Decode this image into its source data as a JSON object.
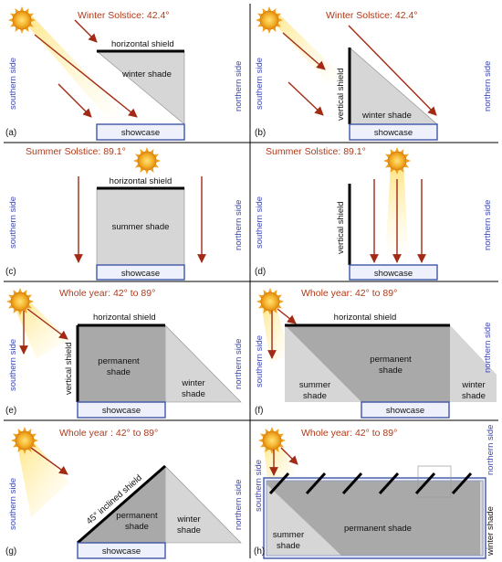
{
  "colors": {
    "ray": "#a32a14",
    "shield": "#000000",
    "shade_light": "#d6d6d6",
    "shade_dark": "#a9a9a9",
    "showcase_border": "#3f56a8",
    "showcase_fill": "#eef1fb",
    "side_text": "#3b46b0",
    "title_text": "#b03a1a",
    "sun": "#f0a21e",
    "grid": "#000000"
  },
  "icons": {
    "sun": "sun-icon"
  },
  "panels": {
    "a": {
      "label": "(a)",
      "title": "Winter Solstice: 42.4°",
      "southern": "southern side",
      "northern": "northern side",
      "shield": "horizontal shield",
      "shade": "winter shade",
      "showcase": "showcase"
    },
    "b": {
      "label": "(b)",
      "title": "Winter Solstice: 42.4°",
      "southern": "southern side",
      "northern": "northern side",
      "shield": "vertical shield",
      "shade": "winter shade",
      "showcase": "showcase"
    },
    "c": {
      "label": "(c)",
      "title": "Summer Solstice: 89.1°",
      "southern": "southern side",
      "northern": "northern side",
      "shield": "horizontal shield",
      "shade": "summer shade",
      "showcase": "showcase"
    },
    "d": {
      "label": "(d)",
      "title": "Summer Solstice: 89.1°",
      "southern": "southern side",
      "northern": "northern side",
      "shield": "vertical shield",
      "showcase": "showcase"
    },
    "e": {
      "label": "(e)",
      "title": "Whole year: 42° to 89°",
      "southern": "southern side",
      "northern": "northern side",
      "shield_h": "horizontal shield",
      "shield_v": "vertical shield",
      "permanent1": "permanent",
      "permanent2": "shade",
      "winter1": "winter",
      "winter2": "shade",
      "showcase": "showcase"
    },
    "f": {
      "label": "(f)",
      "title": "Whole year: 42° to 89°",
      "southern": "southern side",
      "northern": "northern side",
      "shield": "horizontal shield",
      "permanent1": "permanent",
      "permanent2": "shade",
      "summer1": "summer",
      "summer2": "shade",
      "winter1": "winter",
      "winter2": "shade",
      "showcase": "showcase"
    },
    "g": {
      "label": "(g)",
      "title": "Whole year : 42° to 89°",
      "southern": "southern side",
      "northern": "northern side",
      "shield": "45° inclined shield",
      "permanent1": "permanent",
      "permanent2": "shade",
      "winter1": "winter",
      "winter2": "shade",
      "showcase": "showcase"
    },
    "h": {
      "label": "(h)",
      "title": "Whole year: 42° to 89°",
      "southern": "southern side",
      "northern": "northern side",
      "permanent": "permanent shade",
      "summer1": "summer",
      "summer2": "shade",
      "winter": "winter shade"
    }
  }
}
